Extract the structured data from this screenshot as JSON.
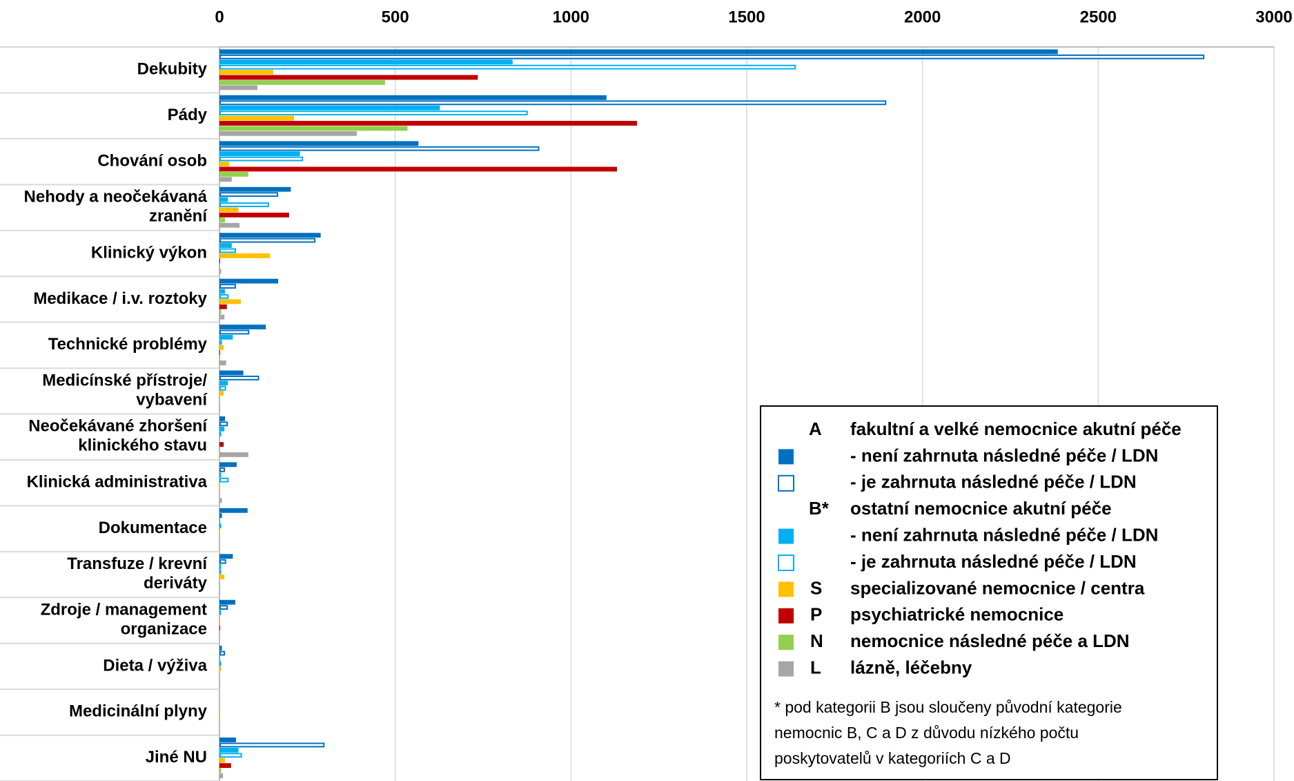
{
  "chart_data": {
    "type": "hbar",
    "categories": [
      "Dekubity",
      "Pády",
      "Chování osob",
      "Nehody a neočekávaná\nzranění",
      "Klinický výkon",
      "Medikace / i.v. roztoky",
      "Technické problémy",
      "Medicínské přístroje/\nvybavení",
      "Neočekávané zhoršení\nklinického stavu",
      "Klinická administrativa",
      "Dokumentace",
      "Transfuze / krevní\nderiváty",
      "Zdroje / management\norganizace",
      "Dieta / výživa",
      "Medicinální plyny",
      "Jiné NU"
    ],
    "series": [
      {
        "name": "- není zahrnuta následné péče / LDN",
        "color": "#0070c0",
        "outline": false,
        "values": [
          2385,
          1101,
          566,
          203,
          288,
          167,
          132,
          68,
          16,
          49,
          80,
          38,
          45,
          7,
          0,
          47
        ]
      },
      {
        "name": "- je zahrnuta následné péče / LDN",
        "color": "#0070c0",
        "outline": true,
        "values": [
          2802,
          1897,
          910,
          167,
          273,
          47,
          85,
          113,
          24,
          16,
          7,
          19,
          24,
          16,
          0,
          299
        ]
      },
      {
        "name": "- není zahrnuta následné péče / LDN",
        "color": "#00b0f0",
        "outline": false,
        "values": [
          834,
          627,
          229,
          24,
          35,
          16,
          38,
          24,
          14,
          5,
          2,
          5,
          5,
          2,
          0,
          54
        ]
      },
      {
        "name": "- je zahrnuta následné péče / LDN",
        "color": "#00b0f0",
        "outline": true,
        "values": [
          1640,
          877,
          238,
          141,
          47,
          26,
          7,
          19,
          5,
          26,
          5,
          5,
          2,
          5,
          0,
          64
        ]
      },
      {
        "code": "S",
        "name": "specializované nemocnice / centra",
        "color": "#ffc000",
        "outline": false,
        "values": [
          153,
          212,
          28,
          54,
          144,
          61,
          12,
          12,
          0,
          2,
          2,
          14,
          2,
          5,
          2,
          16
        ]
      },
      {
        "code": "P",
        "name": "psychiatrické nemocnice",
        "color": "#c00000",
        "outline": false,
        "values": [
          735,
          1188,
          1131,
          198,
          2,
          21,
          2,
          0,
          12,
          0,
          0,
          0,
          2,
          0,
          0,
          33
        ]
      },
      {
        "code": "N",
        "name": "nemocnice následné péče a LDN",
        "color": "#92d050",
        "outline": false,
        "values": [
          471,
          535,
          82,
          16,
          0,
          5,
          2,
          0,
          2,
          0,
          0,
          0,
          0,
          0,
          0,
          5
        ]
      },
      {
        "code": "L",
        "name": "lázně, léčebny",
        "color": "#a6a6a6",
        "outline": false,
        "values": [
          108,
          391,
          35,
          57,
          5,
          14,
          19,
          2,
          82,
          7,
          0,
          2,
          0,
          2,
          0,
          10
        ]
      }
    ],
    "legend_groups": [
      {
        "code": "A",
        "label": "fakultní a velké nemocnice akutní péče"
      },
      {
        "code": "B*",
        "label": "ostatní nemocnice akutní péče"
      }
    ],
    "note_lines": [
      "* pod kategorii B jsou sloučeny původní kategorie",
      "nemocnic B, C a D z důvodu nízkého počtu",
      "poskytovatelů v kategoriích C a D"
    ],
    "xlim": [
      0,
      3000
    ],
    "xticks": [
      0,
      500,
      1000,
      1500,
      2000,
      2500,
      3000
    ],
    "grid": true
  }
}
